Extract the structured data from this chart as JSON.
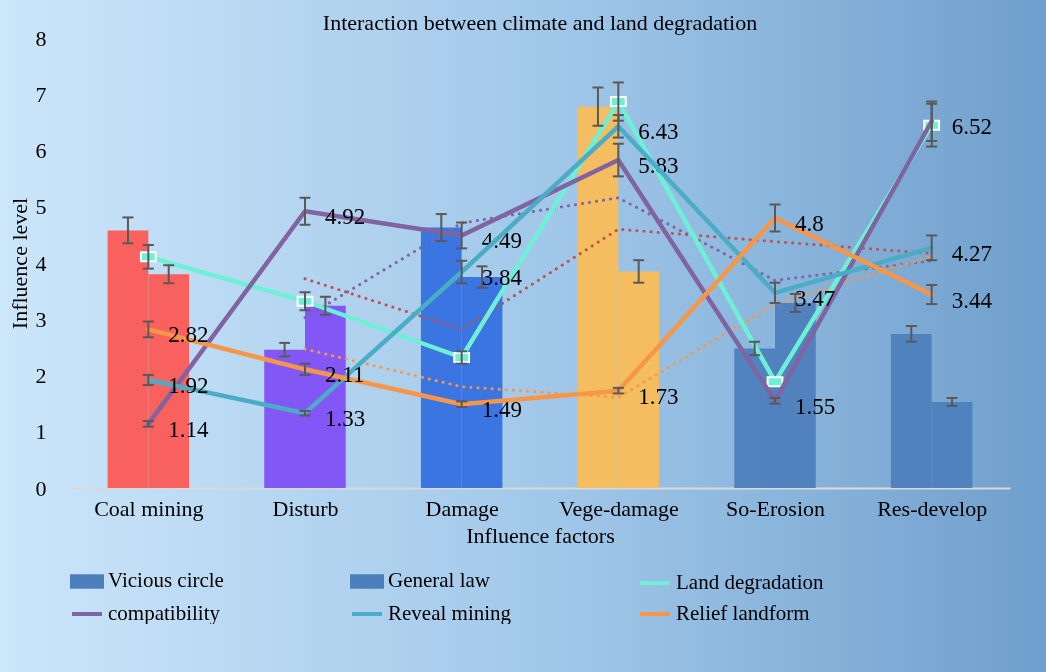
{
  "chart_data": {
    "type": "bar",
    "title": "Interaction between climate and land degradation",
    "xlabel": "Influence factors",
    "ylabel": "Influence level",
    "categories": [
      "Coal mining",
      "Disturb",
      "Damage",
      "Vege-damage",
      "So-Erosion",
      "Res-develop"
    ],
    "ylim": [
      0,
      8
    ],
    "yticks": [
      0,
      1,
      2,
      3,
      4,
      5,
      6,
      7,
      8
    ],
    "legend": "bottom",
    "series": [
      {
        "name": "Vicious circle",
        "color": "#4e7fbd",
        "colors": [
          "#fc5a55",
          "#8050f5",
          "#3570e0",
          "#f9bd58",
          "#4e7fbd",
          "#4e7fbd"
        ],
        "values": [
          4.58,
          2.46,
          4.63,
          6.78,
          2.48,
          2.74
        ],
        "errors": [
          0.23,
          0.12,
          0.24,
          0.34,
          0.12,
          0.14
        ]
      },
      {
        "name": "General law",
        "color": "#4e7fbd",
        "colors": [
          "#fc5a55",
          "#8050f5",
          "#3570e0",
          "#f9bd58",
          "#4e7fbd",
          "#4e7fbd"
        ],
        "values": [
          3.8,
          3.24,
          3.75,
          3.85,
          3.29,
          1.53
        ],
        "errors": [
          0.16,
          0.16,
          0.19,
          0.2,
          0.16,
          0.07
        ]
      },
      {
        "type": "line",
        "color": "#8064a2",
        "line_style": "dotted",
        "values": [
          null,
          3.03,
          4.71,
          5.16,
          3.69,
          4.04
        ]
      },
      {
        "type": "line",
        "color": "#c0504d",
        "line_style": "dotted",
        "values": [
          null,
          3.72,
          2.82,
          4.6,
          4.38,
          4.17
        ]
      },
      {
        "type": "line",
        "color": "#f79646",
        "line_style": "dotted",
        "values": [
          null,
          2.47,
          1.8,
          1.61,
          3.27,
          4.12
        ]
      },
      {
        "name": "Land degradation",
        "type": "line",
        "color": "#6ff0d6",
        "marker": "square",
        "values": [
          4.11,
          3.32,
          2.32,
          6.87,
          1.89,
          6.45
        ],
        "errors": [
          0.21,
          0.16,
          0.11,
          0.34,
          null,
          0.38
        ]
      },
      {
        "name": "compatibility",
        "type": "line",
        "color": "#8064a2",
        "values": [
          1.14,
          4.92,
          4.49,
          5.83,
          1.55,
          6.52
        ],
        "value_labels": [
          "1.14",
          "4.92",
          "4.49",
          "5.83",
          "1.55",
          "6.52"
        ],
        "errors": [
          0.05,
          0.24,
          0.23,
          0.29,
          0.05,
          0.35
        ]
      },
      {
        "name": "Reveal mining",
        "type": "line",
        "color": "#4bacc6",
        "values": [
          1.92,
          1.33,
          3.84,
          6.43,
          3.47,
          4.27
        ],
        "value_labels": [
          "1.92",
          "1.33",
          "3.84",
          "6.43",
          "3.47",
          "4.27"
        ],
        "errors": [
          0.09,
          0.04,
          0.2,
          0.2,
          0.18,
          0.22
        ]
      },
      {
        "name": "Relief landform",
        "type": "line",
        "color": "#f79646",
        "values": [
          2.82,
          2.11,
          1.49,
          1.73,
          4.8,
          3.44
        ],
        "value_labels": [
          "2.82",
          "2.11",
          "1.49",
          "1.73",
          "4.8",
          "3.44"
        ],
        "errors": [
          0.14,
          0.1,
          0.05,
          0.05,
          0.24,
          0.17
        ]
      }
    ]
  }
}
